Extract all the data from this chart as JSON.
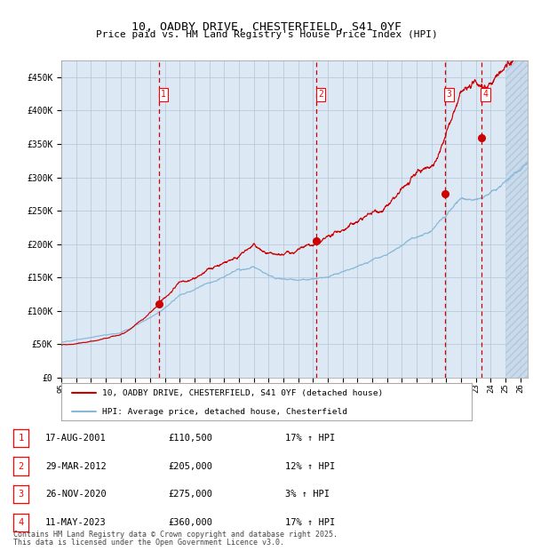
{
  "title": "10, OADBY DRIVE, CHESTERFIELD, S41 0YF",
  "subtitle": "Price paid vs. HM Land Registry's House Price Index (HPI)",
  "bg_color": "#dce9f5",
  "grid_color": "#b0c4d8",
  "red_line_color": "#cc0000",
  "blue_line_color": "#88b8d8",
  "vline_color": "#cc0000",
  "ylim": [
    0,
    475000
  ],
  "yticks": [
    0,
    50000,
    100000,
    150000,
    200000,
    250000,
    300000,
    350000,
    400000,
    450000
  ],
  "ytick_labels": [
    "£0",
    "£50K",
    "£100K",
    "£150K",
    "£200K",
    "£250K",
    "£300K",
    "£350K",
    "£400K",
    "£450K"
  ],
  "xlim_start": 1995.0,
  "xlim_end": 2026.5,
  "xtick_years": [
    1995,
    1996,
    1997,
    1998,
    1999,
    2000,
    2001,
    2002,
    2003,
    2004,
    2005,
    2006,
    2007,
    2008,
    2009,
    2010,
    2011,
    2012,
    2013,
    2014,
    2015,
    2016,
    2017,
    2018,
    2019,
    2020,
    2021,
    2022,
    2023,
    2024,
    2025,
    2026
  ],
  "sales": [
    {
      "num": 1,
      "date": "17-AUG-2001",
      "price": 110500,
      "hpi_pct": "17%",
      "x": 2001.625
    },
    {
      "num": 2,
      "date": "29-MAR-2012",
      "price": 205000,
      "hpi_pct": "12%",
      "x": 2012.25
    },
    {
      "num": 3,
      "date": "26-NOV-2020",
      "price": 275000,
      "hpi_pct": "3%",
      "x": 2020.9
    },
    {
      "num": 4,
      "date": "11-MAY-2023",
      "price": 360000,
      "hpi_pct": "17%",
      "x": 2023.375
    }
  ],
  "hatch_start": 2025.0,
  "legend_line1": "10, OADBY DRIVE, CHESTERFIELD, S41 0YF (detached house)",
  "legend_line2": "HPI: Average price, detached house, Chesterfield",
  "footer1": "Contains HM Land Registry data © Crown copyright and database right 2025.",
  "footer2": "This data is licensed under the Open Government Licence v3.0.",
  "red_seed": 42,
  "blue_seed": 123
}
